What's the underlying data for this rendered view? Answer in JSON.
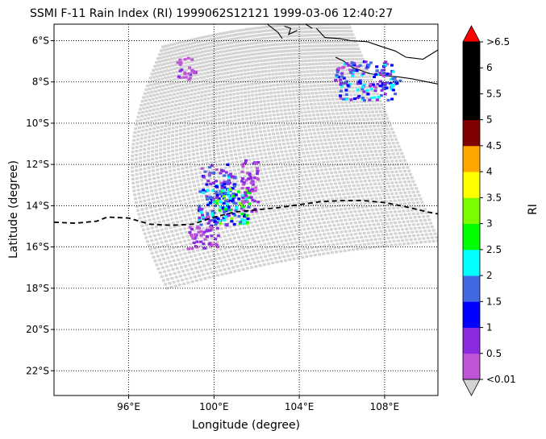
{
  "chart_data": {
    "type": "scatter",
    "title": "SSMI F-11 Rain Index (RI) 1999062S12121 1999-03-06 12:40:27",
    "xlabel": "Longitude (degree)",
    "ylabel": "Latitude (degree)",
    "xlim": [
      92.5,
      110.5
    ],
    "ylim": [
      -23.2,
      -5.2
    ],
    "xticks": [
      96,
      100,
      104,
      108
    ],
    "xtick_labels": [
      "96°E",
      "100°E",
      "104°E",
      "108°E"
    ],
    "yticks": [
      -6,
      -8,
      -10,
      -12,
      -14,
      -16,
      -18,
      -20,
      -22
    ],
    "ytick_labels": [
      "6°S",
      "8°S",
      "10°S",
      "12°S",
      "14°S",
      "16°S",
      "18°S",
      "20°S",
      "22°S"
    ],
    "grid": "dotted",
    "swath_corners": {
      "top_left": [
        97.6,
        -6.3
      ],
      "top_right": [
        106.3,
        -5.2
      ],
      "bottom_right": [
        110.5,
        -15.7
      ],
      "bottom_left": [
        97.8,
        -18.0
      ],
      "left_bulge": [
        96.0,
        -9.0
      ]
    },
    "no_rain_color": "#d3d3d3",
    "colorbar": {
      "label": "RI",
      "levels": [
        0.01,
        0.5,
        1,
        1.5,
        2,
        2.5,
        3,
        3.5,
        4,
        4.5,
        5,
        5.5,
        6,
        6.5
      ],
      "tick_labels": [
        "<0.01",
        "0.5",
        "1",
        "1.5",
        "2",
        "2.5",
        "3",
        "3.5",
        "4",
        "4.5",
        "5",
        "5.5",
        "6",
        ">6.5"
      ],
      "colors": [
        "#bf55d6",
        "#8a2be2",
        "#0000ff",
        "#4169e1",
        "#00ffff",
        "#00ff00",
        "#7cfc00",
        "#ffff00",
        "#ffa500",
        "#800000",
        "#000000",
        "#000000",
        "#000000"
      ],
      "under_color": "#d3d3d3",
      "over_color": "#ff0000"
    },
    "track": {
      "style": "dashed",
      "color": "#000000",
      "lon": [
        92.5,
        93.5,
        94.5,
        95.0,
        96.0,
        97.0,
        98.0,
        99.0,
        100.0,
        101.0,
        102.0,
        103.0,
        104.0,
        105.0,
        106.0,
        107.0,
        108.0,
        109.0,
        110.0,
        110.5
      ],
      "lat": [
        -14.8,
        -14.85,
        -14.75,
        -14.55,
        -14.6,
        -14.9,
        -14.95,
        -14.9,
        -14.55,
        -14.3,
        -14.2,
        -14.1,
        -13.95,
        -13.8,
        -13.75,
        -13.75,
        -13.85,
        -14.05,
        -14.3,
        -14.4
      ]
    },
    "rain_clusters": [
      {
        "lon": [
          99.3,
          101.0
        ],
        "lat": [
          -15.0,
          -12.0
        ],
        "values": [
          0.3,
          2.2
        ],
        "description_level": "mixed purple/blue"
      },
      {
        "lon": [
          99.9,
          101.7
        ],
        "lat": [
          -14.9,
          -13.2
        ],
        "values": [
          1.0,
          3.2
        ],
        "description_level": "blue/cyan/green"
      },
      {
        "lon": [
          98.8,
          100.3
        ],
        "lat": [
          -16.1,
          -14.9
        ],
        "values": [
          0.2,
          0.8
        ],
        "description_level": "purple"
      },
      {
        "lon": [
          101.3,
          102.1
        ],
        "lat": [
          -14.3,
          -11.8
        ],
        "values": [
          0.2,
          0.8
        ],
        "description_level": "purple"
      },
      {
        "lon": [
          105.7,
          108.5
        ],
        "lat": [
          -8.9,
          -7.0
        ],
        "values": [
          0.3,
          2.3
        ],
        "description_level": "purple/blue/cyan"
      },
      {
        "lon": [
          108.1,
          108.9
        ],
        "lat": [
          -8.3,
          -7.8
        ],
        "values": [
          1.2,
          2.4
        ],
        "description_level": "blue/cyan"
      },
      {
        "lon": [
          98.3,
          99.2
        ],
        "lat": [
          -7.9,
          -6.8
        ],
        "values": [
          0.2,
          0.6
        ],
        "description_level": "purple"
      }
    ],
    "coastlines": [
      {
        "lon": [
          102.5,
          103.0,
          103.2
        ],
        "lat": [
          -5.2,
          -5.6,
          -5.9
        ]
      },
      {
        "lon": [
          103.3,
          103.6,
          103.5,
          103.9
        ],
        "lat": [
          -5.3,
          -5.4,
          -5.7,
          -5.5
        ]
      },
      {
        "lon": [
          104.3,
          104.6
        ],
        "lat": [
          -5.2,
          -5.4
        ]
      },
      {
        "lon": [
          104.8,
          105.2,
          105.9,
          106.4,
          107.2,
          107.9,
          108.5,
          109.0,
          109.8,
          110.5
        ],
        "lat": [
          -5.4,
          -5.85,
          -5.9,
          -6.0,
          -6.05,
          -6.3,
          -6.5,
          -6.8,
          -6.9,
          -6.45
        ]
      },
      {
        "lon": [
          105.7,
          106.1,
          106.5,
          107.3,
          108.0,
          108.6,
          109.3,
          110.0,
          110.5
        ],
        "lat": [
          -6.8,
          -7.0,
          -7.3,
          -7.6,
          -7.7,
          -7.75,
          -7.85,
          -8.0,
          -8.1
        ]
      }
    ]
  }
}
